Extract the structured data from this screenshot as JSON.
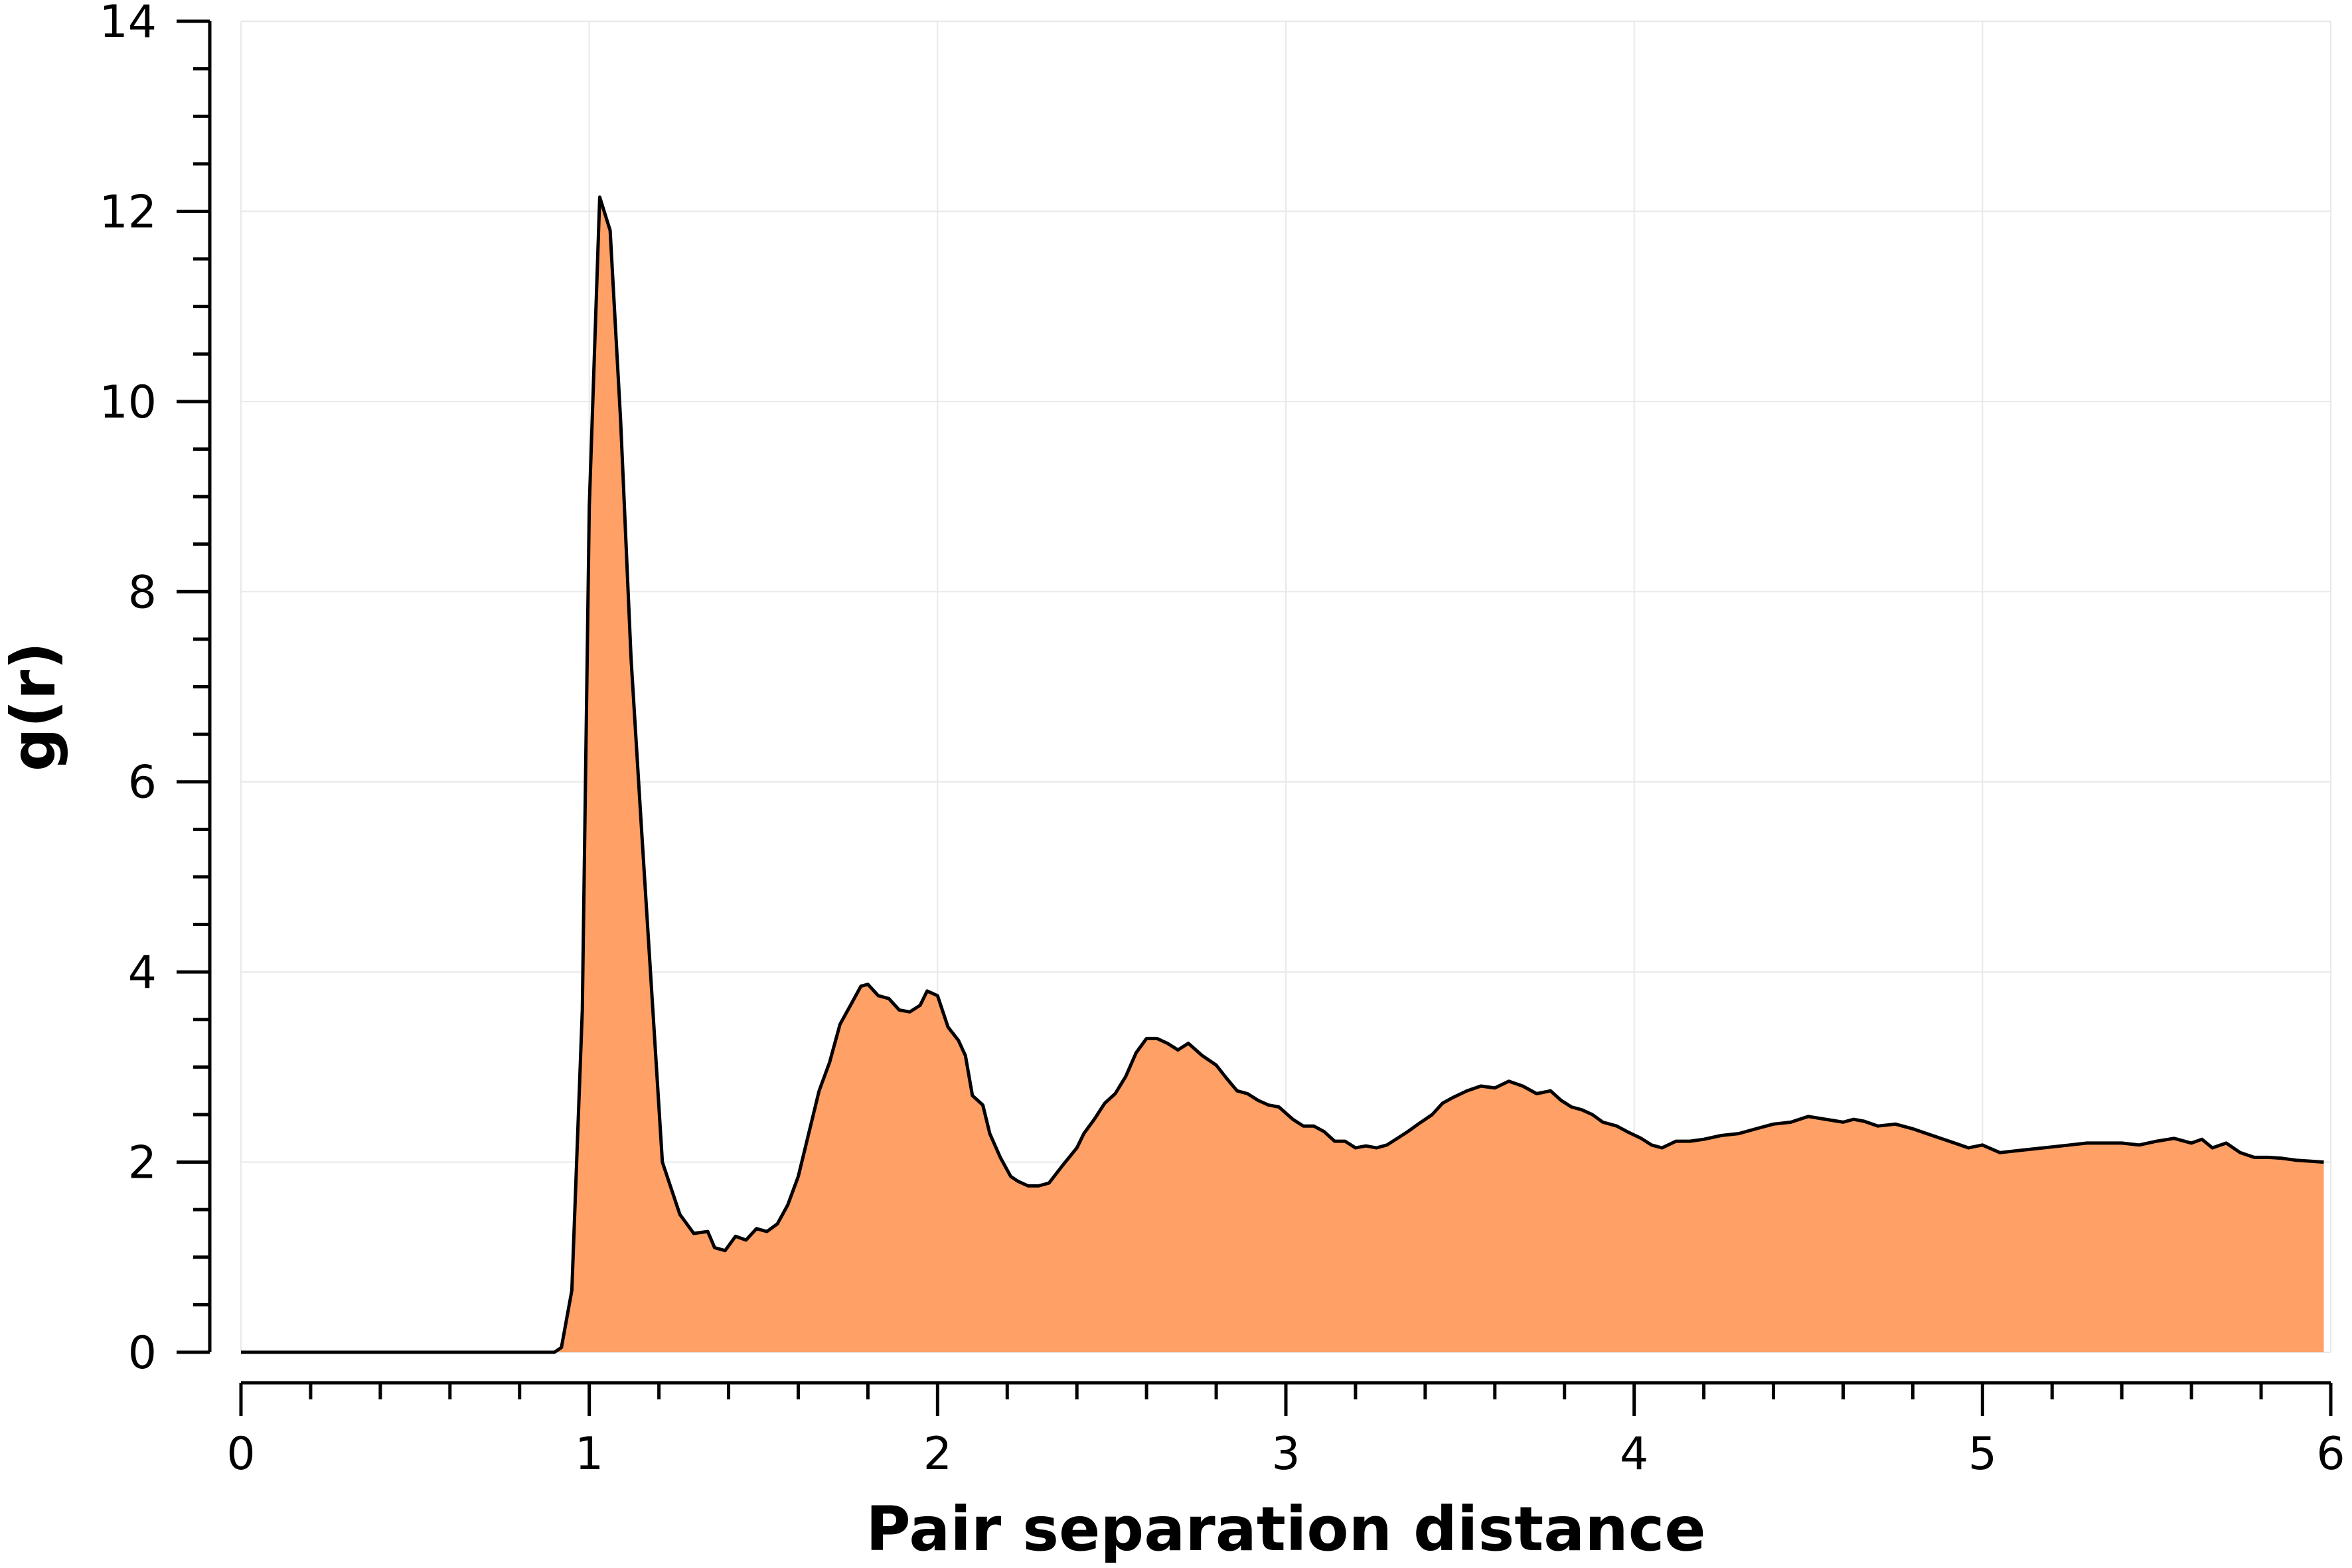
{
  "chart_data": {
    "type": "area",
    "title": "",
    "xlabel": "Pair separation distance",
    "ylabel": "g(r)",
    "xlim": [
      0,
      6
    ],
    "ylim": [
      0,
      14
    ],
    "x_ticks": [
      "0",
      "1",
      "2",
      "3",
      "4",
      "5",
      "6"
    ],
    "y_ticks": [
      "0",
      "2",
      "4",
      "6",
      "8",
      "10",
      "12",
      "14"
    ],
    "grid": true,
    "legend": "none",
    "colors": {
      "fill": "#ffa066",
      "line": "#000000",
      "grid": "#e8e8e8"
    },
    "series": [
      {
        "x": [
          0.0,
          0.9,
          0.92,
          0.95,
          0.98,
          1.0,
          1.03,
          1.06,
          1.09,
          1.12,
          1.15,
          1.18,
          1.21,
          1.26,
          1.3,
          1.34,
          1.36,
          1.39,
          1.42,
          1.45,
          1.48,
          1.51,
          1.54,
          1.57,
          1.6,
          1.63,
          1.66,
          1.69,
          1.72,
          1.75,
          1.78,
          1.8,
          1.83,
          1.86,
          1.89,
          1.92,
          1.95,
          1.97,
          2.0,
          2.03,
          2.06,
          2.08,
          2.1,
          2.13,
          2.15,
          2.18,
          2.21,
          2.23,
          2.26,
          2.29,
          2.32,
          2.36,
          2.4,
          2.42,
          2.45,
          2.48,
          2.51,
          2.54,
          2.57,
          2.6,
          2.63,
          2.66,
          2.69,
          2.72,
          2.76,
          2.8,
          2.83,
          2.86,
          2.89,
          2.92,
          2.95,
          2.98,
          3.02,
          3.05,
          3.08,
          3.11,
          3.14,
          3.17,
          3.2,
          3.23,
          3.26,
          3.29,
          3.32,
          3.35,
          3.38,
          3.42,
          3.45,
          3.48,
          3.52,
          3.56,
          3.6,
          3.64,
          3.68,
          3.72,
          3.76,
          3.79,
          3.82,
          3.85,
          3.88,
          3.91,
          3.95,
          3.98,
          4.02,
          4.05,
          4.08,
          4.12,
          4.16,
          4.2,
          4.25,
          4.3,
          4.35,
          4.4,
          4.45,
          4.5,
          4.55,
          4.6,
          4.63,
          4.66,
          4.7,
          4.75,
          4.8,
          4.84,
          4.88,
          4.92,
          4.96,
          5.0,
          5.05,
          5.1,
          5.15,
          5.2,
          5.25,
          5.3,
          5.35,
          5.4,
          5.45,
          5.5,
          5.55,
          5.6,
          5.63,
          5.66,
          5.7,
          5.74,
          5.78,
          5.82,
          5.86,
          5.9,
          5.94,
          5.98
        ],
        "y": [
          0.0,
          0.0,
          0.05,
          0.65,
          3.6,
          8.9,
          12.15,
          11.8,
          9.8,
          7.3,
          5.5,
          3.75,
          2.0,
          1.45,
          1.25,
          1.27,
          1.1,
          1.07,
          1.22,
          1.18,
          1.3,
          1.27,
          1.35,
          1.55,
          1.85,
          2.3,
          2.75,
          3.05,
          3.45,
          3.65,
          3.85,
          3.87,
          3.75,
          3.72,
          3.6,
          3.58,
          3.65,
          3.8,
          3.75,
          3.42,
          3.28,
          3.12,
          2.7,
          2.6,
          2.3,
          2.05,
          1.85,
          1.8,
          1.75,
          1.75,
          1.78,
          1.97,
          2.15,
          2.3,
          2.45,
          2.62,
          2.72,
          2.9,
          3.15,
          3.3,
          3.3,
          3.25,
          3.18,
          3.25,
          3.12,
          3.02,
          2.88,
          2.75,
          2.72,
          2.65,
          2.6,
          2.58,
          2.45,
          2.38,
          2.38,
          2.32,
          2.22,
          2.22,
          2.15,
          2.17,
          2.15,
          2.18,
          2.25,
          2.32,
          2.4,
          2.5,
          2.62,
          2.68,
          2.75,
          2.8,
          2.78,
          2.85,
          2.8,
          2.72,
          2.75,
          2.65,
          2.58,
          2.55,
          2.5,
          2.42,
          2.38,
          2.32,
          2.25,
          2.18,
          2.15,
          2.22,
          2.22,
          2.24,
          2.28,
          2.3,
          2.35,
          2.4,
          2.42,
          2.48,
          2.45,
          2.42,
          2.45,
          2.43,
          2.38,
          2.4,
          2.35,
          2.3,
          2.25,
          2.2,
          2.15,
          2.18,
          2.1,
          2.12,
          2.14,
          2.16,
          2.18,
          2.2,
          2.2,
          2.2,
          2.18,
          2.22,
          2.25,
          2.2,
          2.24,
          2.15,
          2.2,
          2.1,
          2.05,
          2.05,
          2.04,
          2.02,
          2.01,
          2.0
        ]
      }
    ]
  }
}
